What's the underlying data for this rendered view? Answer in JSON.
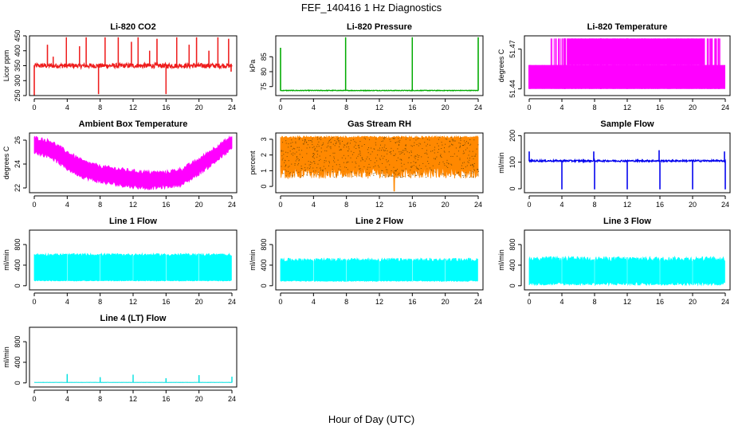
{
  "figure": {
    "title": "FEF_140416  1 Hz Diagnostics",
    "xlabel": "Hour of Day (UTC)"
  },
  "chart_data": [
    {
      "type": "line",
      "title": "Li-820 CO2",
      "ylabel": "Licor ppm",
      "color": "#ee1c1c",
      "xlim": [
        0,
        24
      ],
      "ylim": [
        250,
        450
      ],
      "xticks": [
        0,
        4,
        8,
        12,
        16,
        20,
        24
      ],
      "yticks": [
        "250",
        "300",
        "350",
        "400",
        "450"
      ],
      "series": [
        {
          "baseline": 350,
          "noise": 8,
          "spikes": [
            {
              "x": 0.0,
              "y": 250
            },
            {
              "x": 1.6,
              "y": 420
            },
            {
              "x": 2.3,
              "y": 380
            },
            {
              "x": 3.9,
              "y": 445
            },
            {
              "x": 5.5,
              "y": 415
            },
            {
              "x": 6.3,
              "y": 445
            },
            {
              "x": 7.8,
              "y": 255
            },
            {
              "x": 8.6,
              "y": 445
            },
            {
              "x": 10.2,
              "y": 445
            },
            {
              "x": 11.8,
              "y": 430
            },
            {
              "x": 12.6,
              "y": 445
            },
            {
              "x": 14.0,
              "y": 400
            },
            {
              "x": 14.9,
              "y": 440
            },
            {
              "x": 16.0,
              "y": 255
            },
            {
              "x": 17.3,
              "y": 445
            },
            {
              "x": 18.8,
              "y": 420
            },
            {
              "x": 19.7,
              "y": 445
            },
            {
              "x": 21.2,
              "y": 400
            },
            {
              "x": 22.3,
              "y": 445
            },
            {
              "x": 23.6,
              "y": 440
            },
            {
              "x": 23.9,
              "y": 330
            }
          ]
        }
      ]
    },
    {
      "type": "line",
      "title": "Li-820 Pressure",
      "ylabel": "kPa",
      "color": "#00aa00",
      "xlim": [
        0,
        24
      ],
      "ylim": [
        72,
        92
      ],
      "xticks": [
        0,
        4,
        8,
        12,
        16,
        20,
        24
      ],
      "yticks": [
        "75",
        "80",
        "85"
      ],
      "series": [
        {
          "baseline": 73.7,
          "noise": 0.1,
          "spikes": [
            {
              "x": 0.0,
              "y": 88
            },
            {
              "x": 7.9,
              "y": 91.5
            },
            {
              "x": 16.0,
              "y": 91.5
            },
            {
              "x": 24.0,
              "y": 91.5
            }
          ]
        }
      ]
    },
    {
      "type": "area",
      "title": "Li-820 Temperature",
      "ylabel": "degrees C",
      "color": "#ff00ff",
      "xlim": [
        0,
        24
      ],
      "ylim": [
        51.435,
        51.48
      ],
      "xticks": [
        0,
        4,
        8,
        12,
        16,
        20,
        24
      ],
      "yticks": [
        "51.44",
        "51.47"
      ],
      "series": [
        {
          "levels": [
            51.44,
            51.458,
            51.478
          ],
          "high_start": 2.6,
          "high_end": 23.0
        }
      ]
    },
    {
      "type": "area",
      "title": "Ambient Box Temperature",
      "ylabel": "degrees C",
      "color": "#ff00ff",
      "xlim": [
        0,
        24
      ],
      "ylim": [
        21.6,
        26.6
      ],
      "xticks": [
        0,
        4,
        8,
        12,
        16,
        20,
        24
      ],
      "yticks": [
        "22",
        "24",
        "26"
      ],
      "series": [
        {
          "x": [
            0,
            2,
            4,
            6,
            8,
            10,
            12,
            14,
            16,
            18,
            20,
            22,
            24
          ],
          "upper": [
            26.2,
            25.9,
            25.0,
            24.2,
            23.8,
            23.6,
            23.4,
            23.3,
            23.3,
            23.6,
            24.4,
            25.4,
            26.3
          ],
          "lower": [
            25.0,
            24.6,
            23.6,
            22.9,
            22.5,
            22.3,
            22.1,
            22.0,
            22.1,
            22.3,
            23.2,
            24.2,
            25.3
          ]
        }
      ]
    },
    {
      "type": "area",
      "title": "Gas Stream RH",
      "ylabel": "percent",
      "color": "#ff8800",
      "xlim": [
        0,
        24
      ],
      "ylim": [
        -0.4,
        3.4
      ],
      "xticks": [
        0,
        4,
        8,
        12,
        16,
        20,
        24
      ],
      "yticks": [
        "0",
        "1",
        "2",
        "3"
      ],
      "series": [
        {
          "upper": 3.2,
          "lower_typical": 0.5,
          "lower_min": -0.3,
          "dips": [
            {
              "x": 2.5,
              "y": 1.0
            },
            {
              "x": 7.6,
              "y": 1.2
            },
            {
              "x": 8.2,
              "y": 1.0
            },
            {
              "x": 9.8,
              "y": 1.4
            },
            {
              "x": 10.4,
              "y": 1.3
            },
            {
              "x": 12.1,
              "y": 1.2
            },
            {
              "x": 13.8,
              "y": -0.3
            },
            {
              "x": 15.6,
              "y": 1.1
            },
            {
              "x": 17.9,
              "y": 1.4
            },
            {
              "x": 21.8,
              "y": 1.3
            },
            {
              "x": 23.1,
              "y": 1.0
            }
          ]
        }
      ]
    },
    {
      "type": "line",
      "title": "Sample Flow",
      "ylabel": "ml/min",
      "color": "#0000ee",
      "xlim": [
        0,
        24
      ],
      "ylim": [
        -15,
        210
      ],
      "xticks": [
        0,
        4,
        8,
        12,
        16,
        20,
        24
      ],
      "yticks": [
        "0",
        "100",
        "200"
      ],
      "series": [
        {
          "baseline": 105,
          "noise": 3,
          "spikes": [
            {
              "x": 0.0,
              "y": 140
            },
            {
              "x": 4.0,
              "y": -2
            },
            {
              "x": 7.9,
              "y": 140
            },
            {
              "x": 8.0,
              "y": -2
            },
            {
              "x": 12.0,
              "y": -2
            },
            {
              "x": 15.9,
              "y": 145
            },
            {
              "x": 16.0,
              "y": -2
            },
            {
              "x": 20.0,
              "y": -2
            },
            {
              "x": 23.9,
              "y": 140
            },
            {
              "x": 24.0,
              "y": -2
            }
          ]
        }
      ]
    },
    {
      "type": "area",
      "title": "Line 1 Flow",
      "ylabel": "ml/min",
      "color": "#00ffff",
      "xlim": [
        0,
        24
      ],
      "ylim": [
        -80,
        1080
      ],
      "xticks": [
        0,
        4,
        8,
        12,
        16,
        20,
        24
      ],
      "yticks": [
        "0",
        "400",
        "800"
      ],
      "series": [
        {
          "upper": 600,
          "upper_var": 25,
          "lower": 100,
          "lower_var": 8,
          "gaps": [
            4.0,
            8.0,
            12.0,
            16.0,
            20.0
          ]
        }
      ]
    },
    {
      "type": "area",
      "title": "Line 2 Flow",
      "ylabel": "ml/min",
      "color": "#00ffff",
      "xlim": [
        0,
        24
      ],
      "ylim": [
        -80,
        1080
      ],
      "xticks": [
        0,
        4,
        8,
        12,
        16,
        20,
        24
      ],
      "yticks": [
        "0",
        "400",
        "800"
      ],
      "series": [
        {
          "upper": 500,
          "upper_var": 35,
          "lower": 95,
          "lower_var": 10,
          "gaps": [
            4.0,
            8.0,
            12.0,
            16.0,
            20.0
          ]
        }
      ]
    },
    {
      "type": "area",
      "title": "Line 3 Flow",
      "ylabel": "ml/min",
      "color": "#00ffff",
      "xlim": [
        0,
        24
      ],
      "ylim": [
        -80,
        1080
      ],
      "xticks": [
        0,
        4,
        8,
        12,
        16,
        20,
        24
      ],
      "yticks": [
        "0",
        "400",
        "800"
      ],
      "series": [
        {
          "upper": 520,
          "upper_var": 45,
          "lower": 40,
          "lower_var": 30,
          "gaps": [
            4.0,
            8.0,
            12.0,
            16.0,
            20.0
          ]
        }
      ]
    },
    {
      "type": "line",
      "title": "Line 4 (LT) Flow",
      "ylabel": "ml/min",
      "color": "#00e0e0",
      "xlim": [
        0,
        24
      ],
      "ylim": [
        -80,
        1080
      ],
      "xticks": [
        0,
        4,
        8,
        12,
        16,
        20,
        24
      ],
      "yticks": [
        "0",
        "400",
        "800"
      ],
      "series": [
        {
          "baseline": 10,
          "noise": 2,
          "spikes": [
            {
              "x": 4.0,
              "y": 170
            },
            {
              "x": 8.0,
              "y": 110
            },
            {
              "x": 12.0,
              "y": 160
            },
            {
              "x": 16.0,
              "y": 90
            },
            {
              "x": 20.0,
              "y": 150
            },
            {
              "x": 24.0,
              "y": 120
            }
          ]
        }
      ]
    }
  ]
}
